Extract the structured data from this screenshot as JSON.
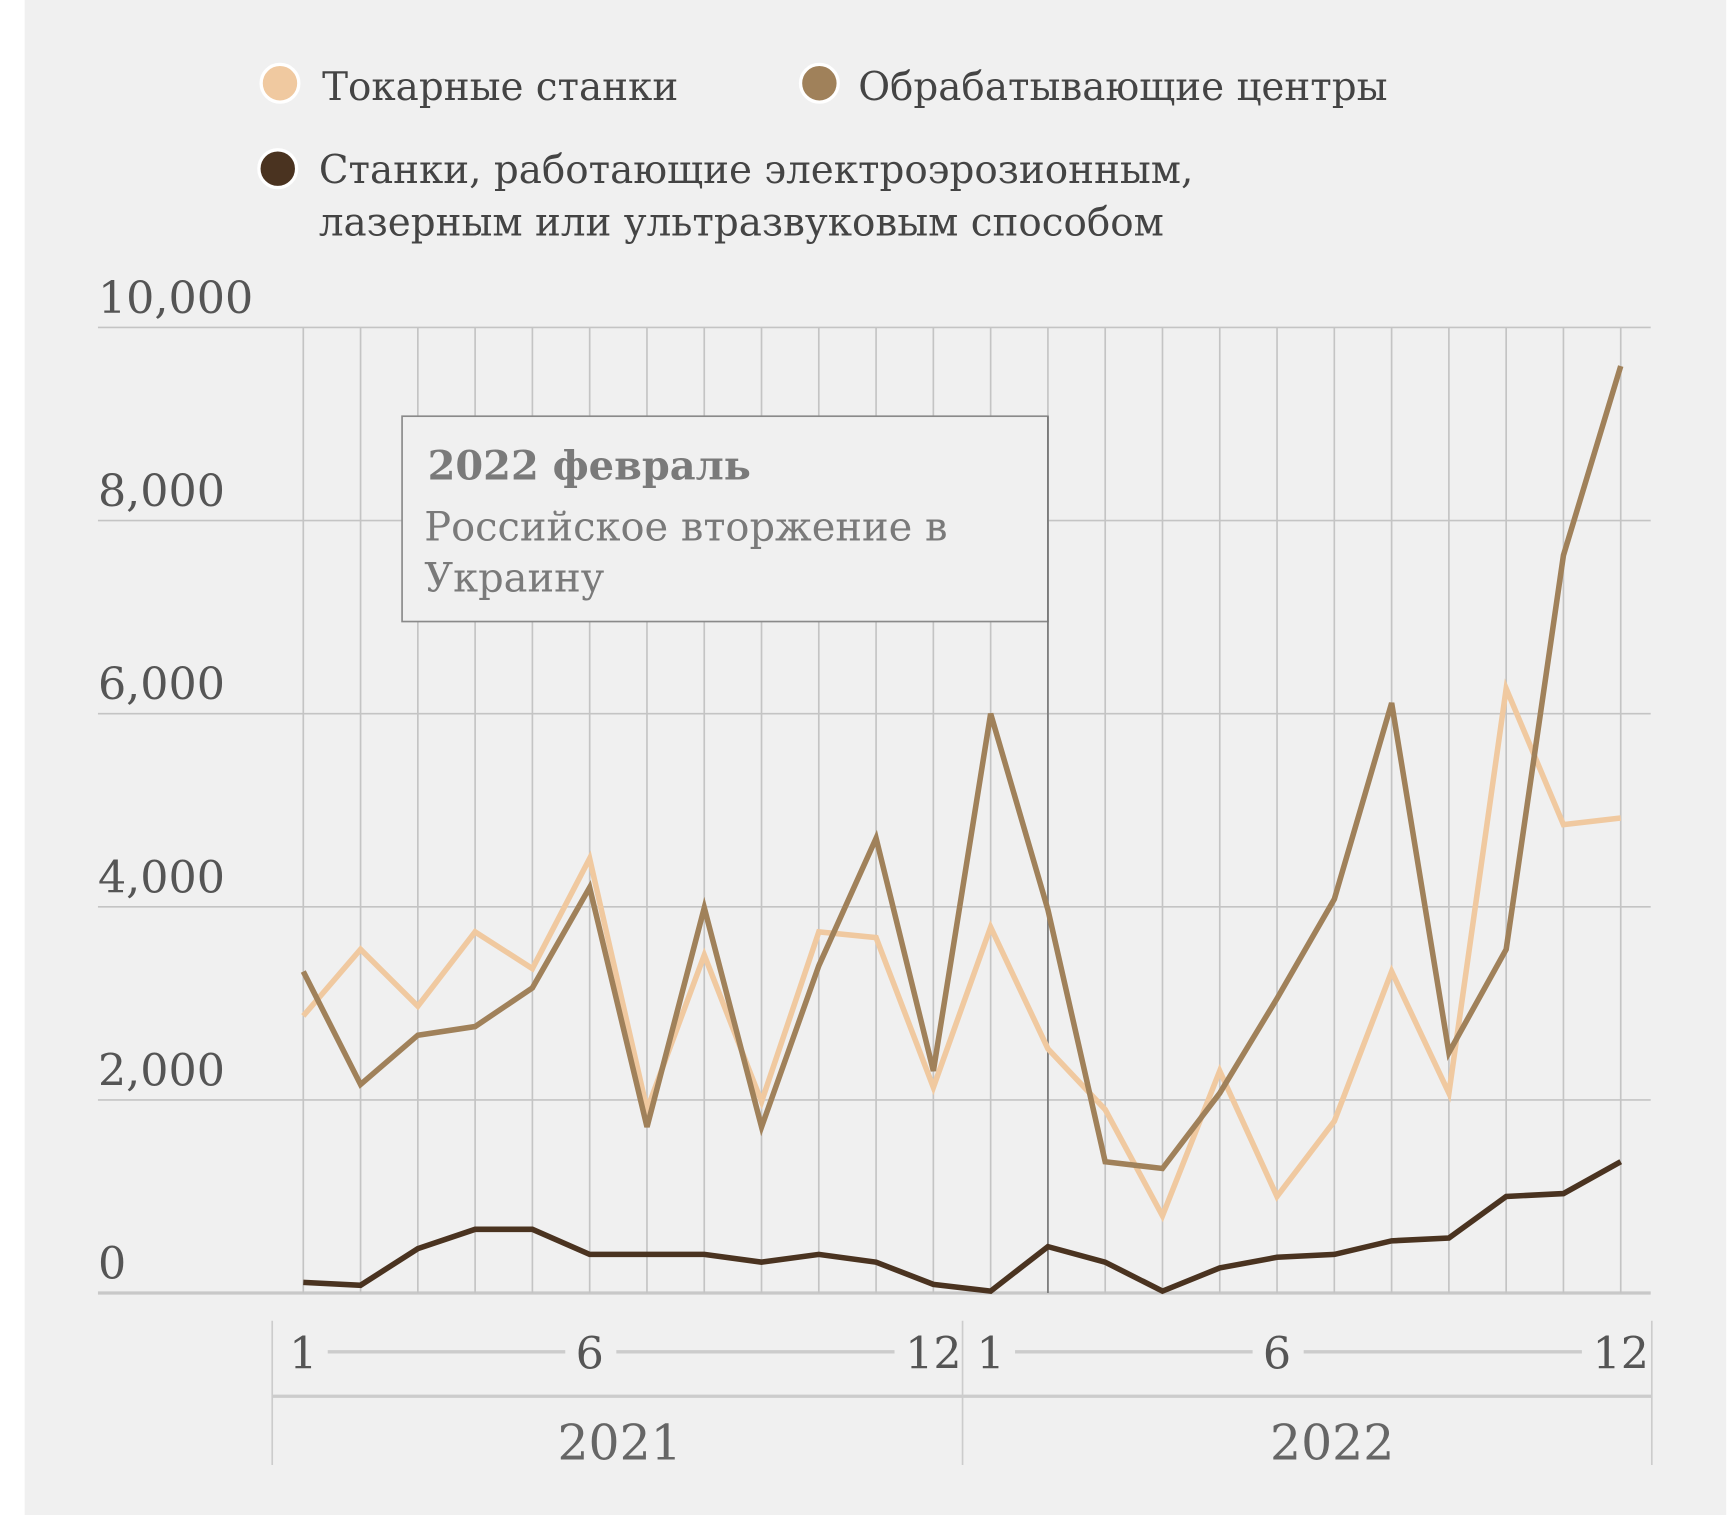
{
  "chart_data": {
    "type": "line",
    "title": "",
    "xlabel": "",
    "ylabel": "",
    "ylim": [
      0,
      10000
    ],
    "yticks": [
      "0",
      "2,000",
      "4,000",
      "6,000",
      "8,000",
      "10,000"
    ],
    "ytick_values": [
      0,
      2000,
      4000,
      6000,
      8000,
      10000
    ],
    "grid": true,
    "legend_placement": "top",
    "x_month_ticks": [
      "1",
      "6",
      "12"
    ],
    "years": [
      "2021",
      "2022"
    ],
    "x": [
      "2021-01",
      "2021-02",
      "2021-03",
      "2021-04",
      "2021-05",
      "2021-06",
      "2021-07",
      "2021-08",
      "2021-09",
      "2021-10",
      "2021-11",
      "2021-12",
      "2022-01",
      "2022-02",
      "2022-03",
      "2022-04",
      "2022-05",
      "2022-06",
      "2022-07",
      "2022-08",
      "2022-09",
      "2022-10",
      "2022-11",
      "2022-12"
    ],
    "series": [
      {
        "name": "Токарные станки",
        "color": "#f0c9a0",
        "values": [
          2870,
          3560,
          2970,
          3740,
          3360,
          4500,
          1900,
          3500,
          1980,
          3740,
          3680,
          2130,
          3790,
          2530,
          1900,
          800,
          2300,
          1000,
          1780,
          3330,
          2070,
          6260,
          4850,
          4920
        ]
      },
      {
        "name": "Обрабатывающие центры",
        "color": "#a0815a",
        "values": [
          3330,
          2160,
          2670,
          2760,
          3160,
          4200,
          1720,
          3990,
          1720,
          3390,
          4710,
          2300,
          6000,
          3970,
          1360,
          1290,
          2070,
          3050,
          4080,
          6110,
          2490,
          3560,
          7640,
          9600
        ]
      },
      {
        "name": "Станки, работающие электроэрозионным, лазерным или ультразвуковым способом",
        "name_lines": [
          "Станки, работающие электроэрозионным,",
          "лазерным или ультразвуковым способом"
        ],
        "color": "#4a3320",
        "values": [
          110,
          80,
          460,
          660,
          660,
          400,
          400,
          400,
          320,
          400,
          320,
          90,
          20,
          480,
          320,
          20,
          260,
          370,
          400,
          540,
          570,
          1000,
          1030,
          1360
        ]
      }
    ],
    "annotation": {
      "x": "2022-02",
      "title": "2022 февраль",
      "text_lines": [
        "Российское вторжение в",
        "Украину"
      ]
    }
  }
}
